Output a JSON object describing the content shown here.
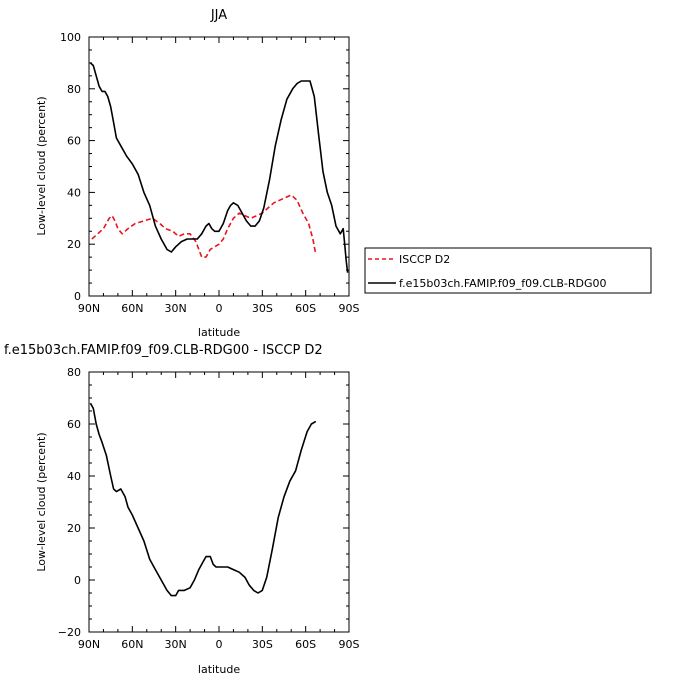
{
  "chart_data": [
    {
      "type": "line",
      "title": "JJA",
      "xlabel": "latitude",
      "ylabel": "Low-level cloud (percent)",
      "xlim": [
        90,
        -90
      ],
      "ylim": [
        0,
        100
      ],
      "xticks": [
        {
          "value": 90,
          "label": "90N"
        },
        {
          "value": 60,
          "label": "60N"
        },
        {
          "value": 30,
          "label": "30N"
        },
        {
          "value": 0,
          "label": "0"
        },
        {
          "value": -30,
          "label": "30S"
        },
        {
          "value": -60,
          "label": "60S"
        },
        {
          "value": -90,
          "label": "90S"
        }
      ],
      "yticks": [
        0,
        20,
        40,
        60,
        80,
        100
      ],
      "legend_position": "outside-right",
      "series": [
        {
          "name": "ISCCP D2",
          "color": "#e8141e",
          "dash": true,
          "points": [
            [
              88,
              22
            ],
            [
              84,
              24
            ],
            [
              80,
              26
            ],
            [
              76,
              30
            ],
            [
              74,
              31
            ],
            [
              72,
              29
            ],
            [
              70,
              26
            ],
            [
              67,
              24
            ],
            [
              63,
              26
            ],
            [
              58,
              28
            ],
            [
              52,
              29
            ],
            [
              46,
              30
            ],
            [
              41,
              28
            ],
            [
              37,
              26
            ],
            [
              32,
              25
            ],
            [
              28,
              23
            ],
            [
              24,
              24
            ],
            [
              20,
              24
            ],
            [
              16,
              21
            ],
            [
              12,
              15
            ],
            [
              9,
              15
            ],
            [
              6,
              18
            ],
            [
              3,
              19
            ],
            [
              0,
              20
            ],
            [
              -3,
              22
            ],
            [
              -6,
              26
            ],
            [
              -10,
              30
            ],
            [
              -14,
              32
            ],
            [
              -18,
              31
            ],
            [
              -22,
              30
            ],
            [
              -26,
              31
            ],
            [
              -30,
              32
            ],
            [
              -34,
              34
            ],
            [
              -38,
              36
            ],
            [
              -42,
              37
            ],
            [
              -46,
              38
            ],
            [
              -50,
              39
            ],
            [
              -54,
              37
            ],
            [
              -58,
              32
            ],
            [
              -62,
              28
            ],
            [
              -65,
              22
            ],
            [
              -67,
              16
            ]
          ]
        },
        {
          "name": "f.e15b03ch.FAMIP.f09_f09.CLB-RDG00",
          "color": "#000000",
          "dash": false,
          "points": [
            [
              89,
              90
            ],
            [
              87,
              89
            ],
            [
              85,
              85
            ],
            [
              83,
              81
            ],
            [
              81,
              79
            ],
            [
              79,
              79
            ],
            [
              77,
              77
            ],
            [
              75,
              73
            ],
            [
              73,
              67
            ],
            [
              71,
              61
            ],
            [
              68,
              58
            ],
            [
              64,
              54
            ],
            [
              60,
              51
            ],
            [
              56,
              47
            ],
            [
              52,
              40
            ],
            [
              48,
              35
            ],
            [
              44,
              27
            ],
            [
              40,
              22
            ],
            [
              36,
              18
            ],
            [
              33,
              17
            ],
            [
              30,
              19
            ],
            [
              26,
              21
            ],
            [
              22,
              22
            ],
            [
              18,
              22
            ],
            [
              15,
              22
            ],
            [
              12,
              24
            ],
            [
              9,
              27
            ],
            [
              7,
              28
            ],
            [
              5,
              26
            ],
            [
              3,
              25
            ],
            [
              0,
              25
            ],
            [
              -3,
              28
            ],
            [
              -6,
              33
            ],
            [
              -8,
              35
            ],
            [
              -10,
              36
            ],
            [
              -13,
              35
            ],
            [
              -16,
              32
            ],
            [
              -19,
              29
            ],
            [
              -22,
              27
            ],
            [
              -25,
              27
            ],
            [
              -28,
              29
            ],
            [
              -31,
              34
            ],
            [
              -35,
              45
            ],
            [
              -39,
              58
            ],
            [
              -43,
              68
            ],
            [
              -47,
              76
            ],
            [
              -51,
              80
            ],
            [
              -54,
              82
            ],
            [
              -57,
              83
            ],
            [
              -60,
              83
            ],
            [
              -63,
              83
            ],
            [
              -66,
              77
            ],
            [
              -69,
              62
            ],
            [
              -72,
              48
            ],
            [
              -75,
              40
            ],
            [
              -78,
              35
            ],
            [
              -81,
              27
            ],
            [
              -84,
              24
            ],
            [
              -86,
              26
            ],
            [
              -87,
              20
            ],
            [
              -88,
              14
            ],
            [
              -89,
              9
            ]
          ]
        }
      ]
    },
    {
      "type": "line",
      "title": "f.e15b03ch.FAMIP.f09_f09.CLB-RDG00 - ISCCP D2",
      "xlabel": "latitude",
      "ylabel": "Low-level cloud (percent)",
      "xlim": [
        90,
        -90
      ],
      "ylim": [
        -20,
        80
      ],
      "xticks": [
        {
          "value": 90,
          "label": "90N"
        },
        {
          "value": 60,
          "label": "60N"
        },
        {
          "value": 30,
          "label": "30N"
        },
        {
          "value": 0,
          "label": "0"
        },
        {
          "value": -30,
          "label": "30S"
        },
        {
          "value": -60,
          "label": "60S"
        },
        {
          "value": -90,
          "label": "90S"
        }
      ],
      "yticks": [
        -20,
        0,
        20,
        40,
        60,
        80
      ],
      "series": [
        {
          "color": "#000000",
          "dash": false,
          "points": [
            [
              89,
              68
            ],
            [
              87,
              66
            ],
            [
              85,
              60
            ],
            [
              83,
              56
            ],
            [
              81,
              53
            ],
            [
              78,
              48
            ],
            [
              75,
              40
            ],
            [
              73,
              35
            ],
            [
              71,
              34
            ],
            [
              68,
              35
            ],
            [
              65,
              32
            ],
            [
              63,
              28
            ],
            [
              60,
              25
            ],
            [
              56,
              20
            ],
            [
              52,
              15
            ],
            [
              48,
              8
            ],
            [
              44,
              4
            ],
            [
              40,
              0
            ],
            [
              36,
              -4
            ],
            [
              33,
              -6
            ],
            [
              30,
              -6
            ],
            [
              28,
              -4
            ],
            [
              24,
              -4
            ],
            [
              20,
              -3
            ],
            [
              17,
              0
            ],
            [
              14,
              4
            ],
            [
              11,
              7
            ],
            [
              9,
              9
            ],
            [
              6,
              9
            ],
            [
              4,
              6
            ],
            [
              2,
              5
            ],
            [
              0,
              5
            ],
            [
              -3,
              5
            ],
            [
              -6,
              5
            ],
            [
              -10,
              4
            ],
            [
              -14,
              3
            ],
            [
              -18,
              1
            ],
            [
              -21,
              -2
            ],
            [
              -24,
              -4
            ],
            [
              -27,
              -5
            ],
            [
              -30,
              -4
            ],
            [
              -33,
              1
            ],
            [
              -37,
              12
            ],
            [
              -41,
              24
            ],
            [
              -45,
              32
            ],
            [
              -49,
              38
            ],
            [
              -53,
              42
            ],
            [
              -57,
              50
            ],
            [
              -61,
              57
            ],
            [
              -64,
              60
            ],
            [
              -67,
              61
            ]
          ]
        }
      ]
    }
  ]
}
